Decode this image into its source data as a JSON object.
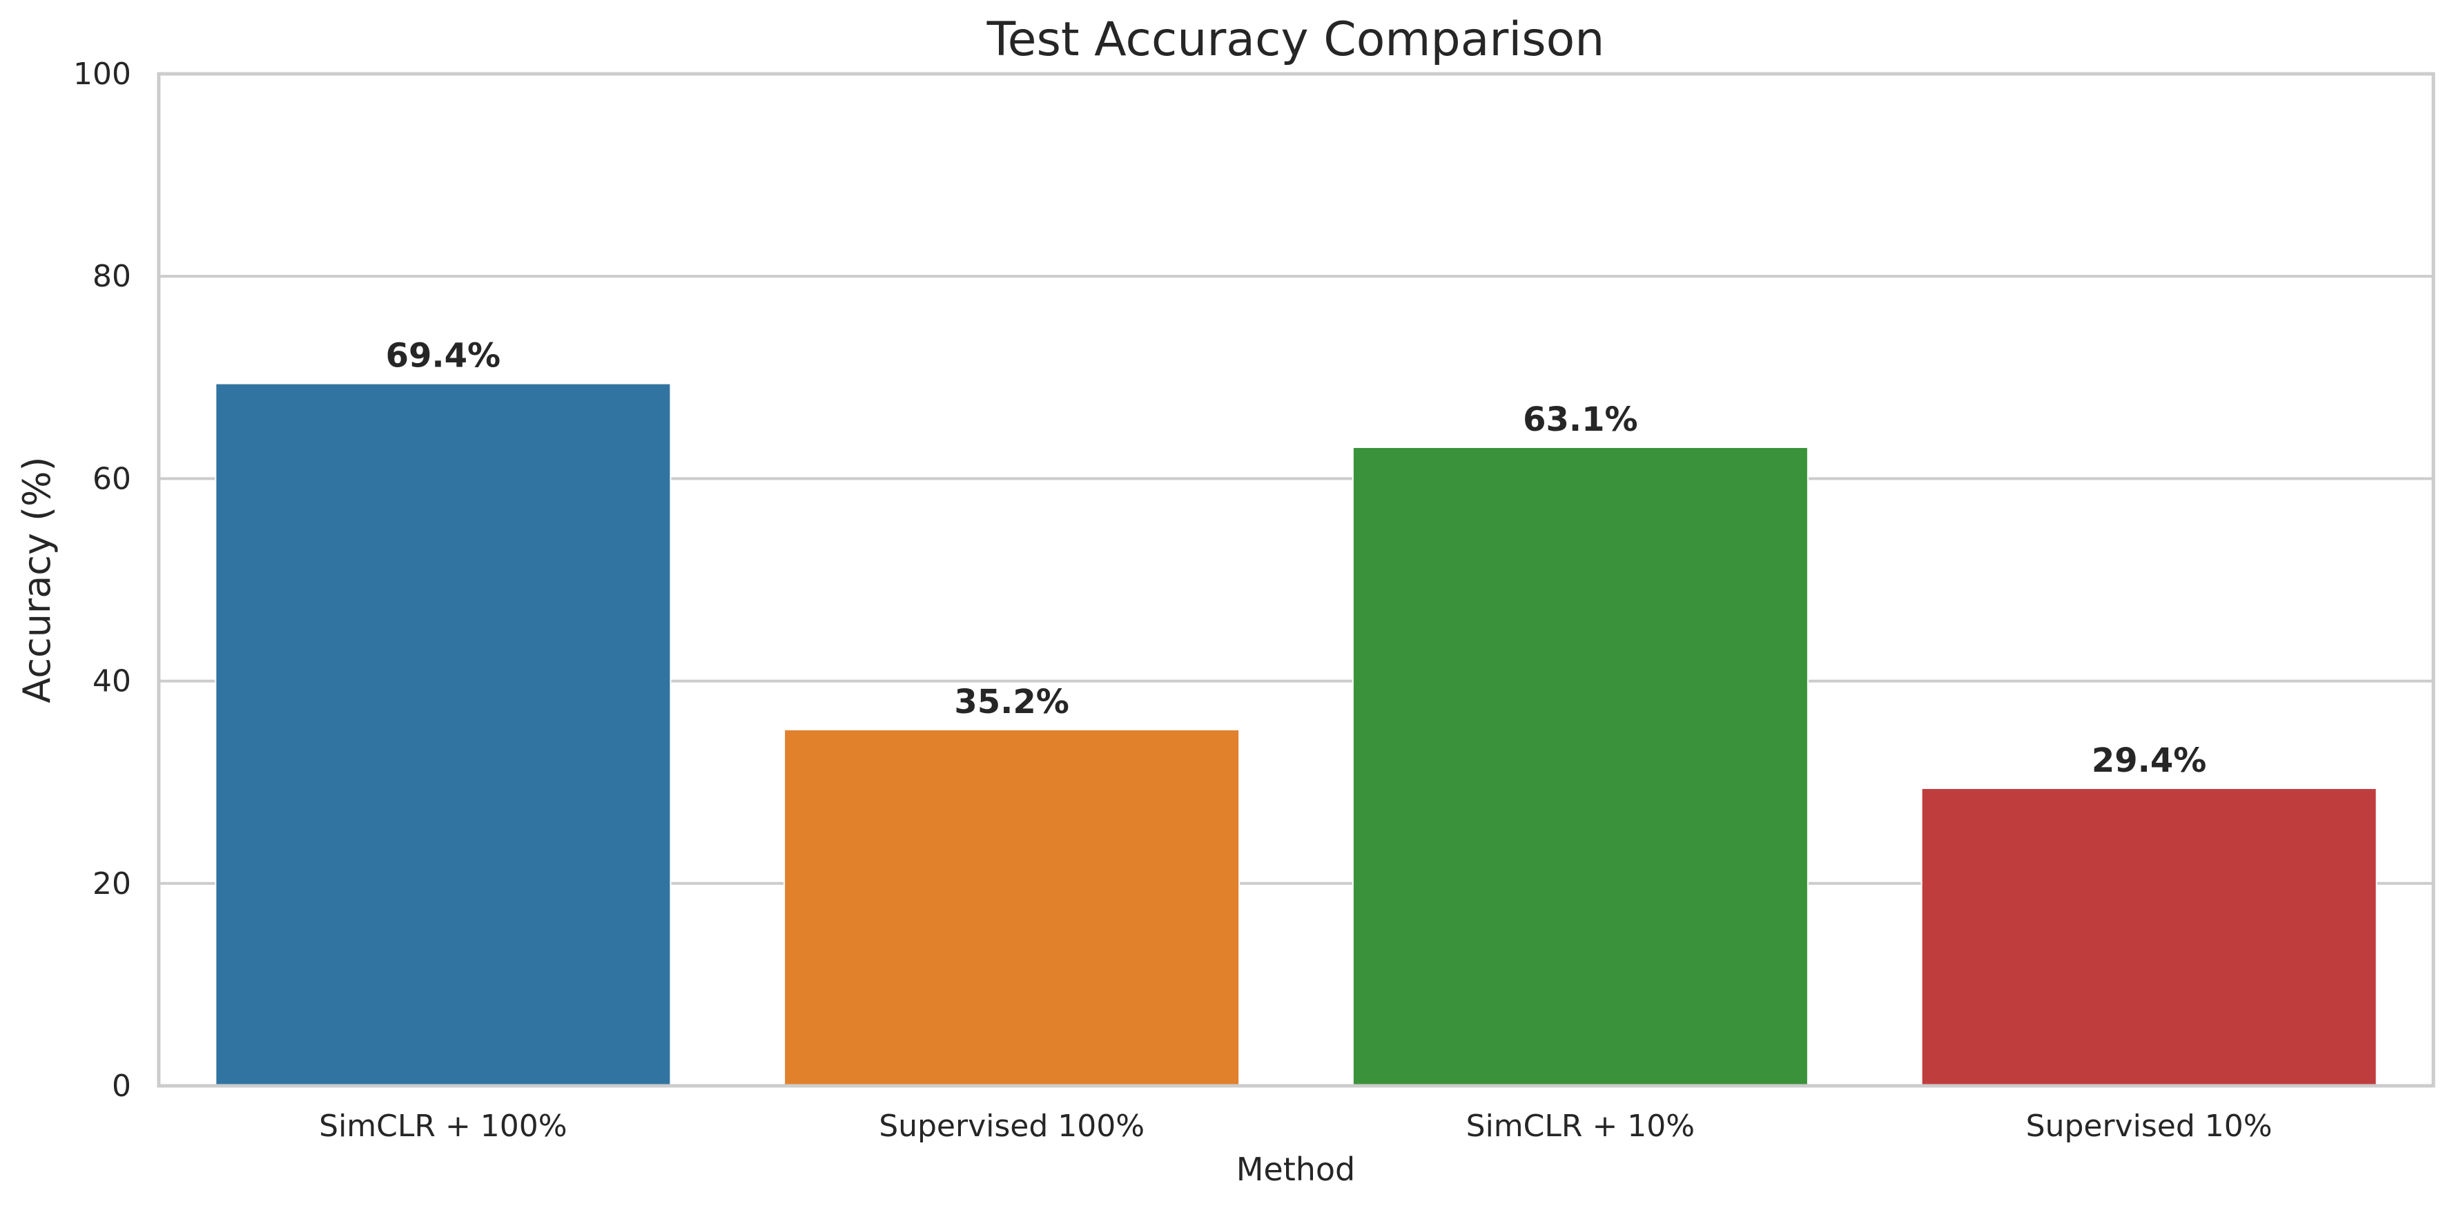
{
  "chart_data": {
    "type": "bar",
    "title": "Test Accuracy Comparison",
    "xlabel": "Method",
    "ylabel": "Accuracy (%)",
    "categories": [
      "SimCLR + 100%",
      "Supervised 100%",
      "SimCLR + 10%",
      "Supervised 10%"
    ],
    "values": [
      69.4,
      35.2,
      63.1,
      29.4
    ],
    "value_labels": [
      "69.4%",
      "35.2%",
      "63.1%",
      "29.4%"
    ],
    "colors": [
      "#3274a1",
      "#e1812c",
      "#3a923a",
      "#c03d3e"
    ],
    "ylim": [
      0,
      100
    ],
    "yticks": [
      0,
      20,
      40,
      60,
      80,
      100
    ],
    "ytick_labels": [
      "0",
      "20",
      "40",
      "60",
      "80",
      "100"
    ],
    "grid": "horizontal",
    "legend": false
  }
}
